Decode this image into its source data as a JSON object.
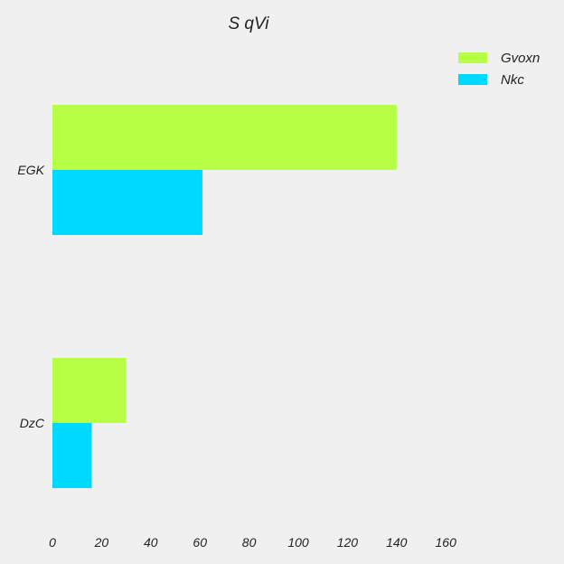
{
  "chart_data": {
    "type": "bar",
    "orientation": "horizontal",
    "title": "S qVi",
    "xlabel": "",
    "ylabel": "",
    "categories": [
      "EGK",
      "DzC"
    ],
    "series": [
      {
        "name": "Gvoxn",
        "values": [
          140,
          30
        ],
        "color": "#b6ff45"
      },
      {
        "name": "Nkc",
        "values": [
          61,
          16
        ],
        "color": "#00d9ff"
      }
    ],
    "xlim": [
      0,
      160
    ],
    "xticks": [
      0,
      20,
      40,
      60,
      80,
      100,
      120,
      140,
      160
    ],
    "grid": false,
    "legend_position": "top-right"
  }
}
